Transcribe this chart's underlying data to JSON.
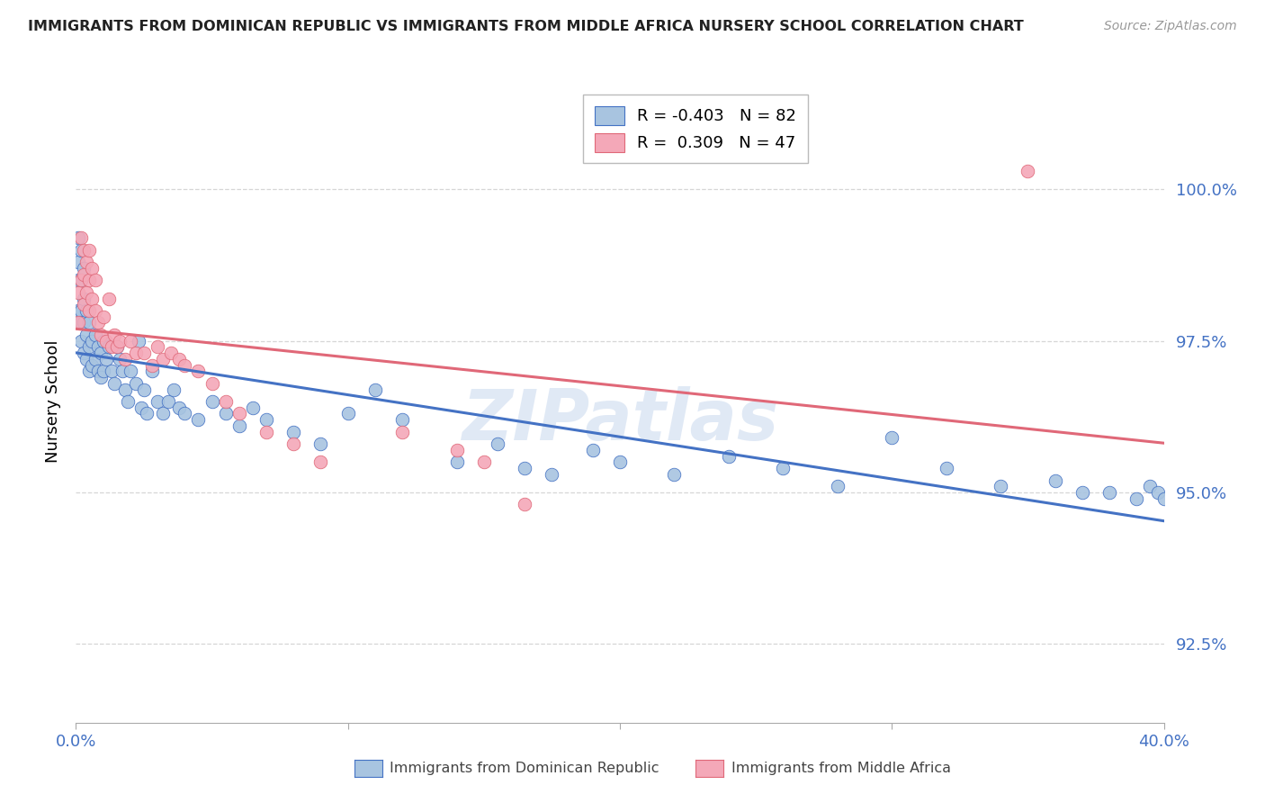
{
  "title": "IMMIGRANTS FROM DOMINICAN REPUBLIC VS IMMIGRANTS FROM MIDDLE AFRICA NURSERY SCHOOL CORRELATION CHART",
  "source": "Source: ZipAtlas.com",
  "ylabel": "Nursery School",
  "yticks": [
    92.5,
    95.0,
    97.5,
    100.0
  ],
  "ytick_labels": [
    "92.5%",
    "95.0%",
    "97.5%",
    "100.0%"
  ],
  "xlim": [
    0.0,
    0.4
  ],
  "ylim": [
    91.2,
    101.8
  ],
  "blue_R": -0.403,
  "blue_N": 82,
  "pink_R": 0.309,
  "pink_N": 47,
  "blue_color": "#a8c4e0",
  "pink_color": "#f4a8b8",
  "blue_line_color": "#4472c4",
  "pink_line_color": "#e06878",
  "axis_color": "#4472c4",
  "grid_color": "#cccccc",
  "title_color": "#222222",
  "watermark": "ZIPatlas",
  "blue_x": [
    0.001,
    0.001,
    0.001,
    0.001,
    0.002,
    0.002,
    0.002,
    0.002,
    0.002,
    0.003,
    0.003,
    0.003,
    0.003,
    0.004,
    0.004,
    0.004,
    0.005,
    0.005,
    0.005,
    0.006,
    0.006,
    0.007,
    0.007,
    0.008,
    0.008,
    0.009,
    0.009,
    0.01,
    0.01,
    0.011,
    0.012,
    0.013,
    0.014,
    0.015,
    0.016,
    0.017,
    0.018,
    0.019,
    0.02,
    0.022,
    0.023,
    0.024,
    0.025,
    0.026,
    0.028,
    0.03,
    0.032,
    0.034,
    0.036,
    0.038,
    0.04,
    0.045,
    0.05,
    0.055,
    0.06,
    0.065,
    0.07,
    0.08,
    0.09,
    0.1,
    0.11,
    0.12,
    0.14,
    0.155,
    0.165,
    0.175,
    0.19,
    0.2,
    0.22,
    0.24,
    0.26,
    0.28,
    0.3,
    0.32,
    0.34,
    0.36,
    0.37,
    0.38,
    0.39,
    0.395,
    0.398,
    0.4
  ],
  "blue_y": [
    99.2,
    98.8,
    98.5,
    98.0,
    99.0,
    98.5,
    98.0,
    97.8,
    97.5,
    98.7,
    98.2,
    97.8,
    97.3,
    98.0,
    97.6,
    97.2,
    97.8,
    97.4,
    97.0,
    97.5,
    97.1,
    97.6,
    97.2,
    97.4,
    97.0,
    97.3,
    96.9,
    97.5,
    97.0,
    97.2,
    97.4,
    97.0,
    96.8,
    97.4,
    97.2,
    97.0,
    96.7,
    96.5,
    97.0,
    96.8,
    97.5,
    96.4,
    96.7,
    96.3,
    97.0,
    96.5,
    96.3,
    96.5,
    96.7,
    96.4,
    96.3,
    96.2,
    96.5,
    96.3,
    96.1,
    96.4,
    96.2,
    96.0,
    95.8,
    96.3,
    96.7,
    96.2,
    95.5,
    95.8,
    95.4,
    95.3,
    95.7,
    95.5,
    95.3,
    95.6,
    95.4,
    95.1,
    95.9,
    95.4,
    95.1,
    95.2,
    95.0,
    95.0,
    94.9,
    95.1,
    95.0,
    94.9
  ],
  "pink_x": [
    0.001,
    0.001,
    0.002,
    0.002,
    0.003,
    0.003,
    0.003,
    0.004,
    0.004,
    0.005,
    0.005,
    0.005,
    0.006,
    0.006,
    0.007,
    0.007,
    0.008,
    0.009,
    0.01,
    0.011,
    0.012,
    0.013,
    0.014,
    0.015,
    0.016,
    0.018,
    0.02,
    0.022,
    0.025,
    0.028,
    0.03,
    0.032,
    0.035,
    0.038,
    0.04,
    0.045,
    0.05,
    0.055,
    0.06,
    0.07,
    0.08,
    0.09,
    0.12,
    0.14,
    0.15,
    0.165,
    0.35
  ],
  "pink_y": [
    98.3,
    97.8,
    99.2,
    98.5,
    99.0,
    98.6,
    98.1,
    98.8,
    98.3,
    99.0,
    98.5,
    98.0,
    98.7,
    98.2,
    98.5,
    98.0,
    97.8,
    97.6,
    97.9,
    97.5,
    98.2,
    97.4,
    97.6,
    97.4,
    97.5,
    97.2,
    97.5,
    97.3,
    97.3,
    97.1,
    97.4,
    97.2,
    97.3,
    97.2,
    97.1,
    97.0,
    96.8,
    96.5,
    96.3,
    96.0,
    95.8,
    95.5,
    96.0,
    95.7,
    95.5,
    94.8,
    100.3
  ]
}
